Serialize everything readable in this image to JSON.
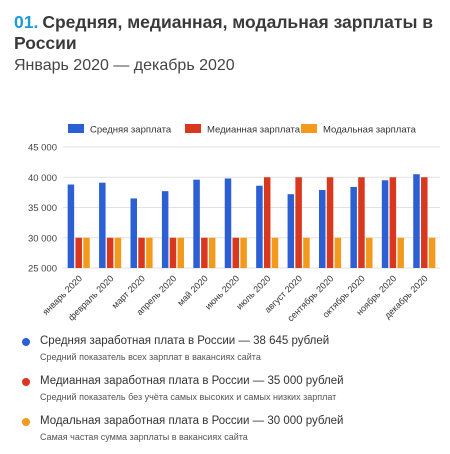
{
  "header": {
    "number": "01.",
    "title": "Средняя, медианная, модальная зарплаты в России",
    "subtitle": "Январь 2020 — декабрь 2020"
  },
  "chart_data": {
    "type": "bar",
    "categories": [
      "январь 2020",
      "февраль 2020",
      "март 2020",
      "апрель 2020",
      "май 2020",
      "июнь 2020",
      "июль 2020",
      "август 2020",
      "сентябрь 2020",
      "октябрь 2020",
      "ноябрь 2020",
      "декабрь 2020"
    ],
    "series": [
      {
        "name": "Средняя зарплата",
        "color": "#2b5fd3",
        "values": [
          38800,
          39100,
          36500,
          37700,
          39600,
          39800,
          38600,
          37200,
          37900,
          38400,
          39500,
          40500
        ]
      },
      {
        "name": "Медианная зарплата",
        "color": "#d9381e",
        "values": [
          30000,
          30000,
          30000,
          30000,
          30000,
          30000,
          40000,
          40000,
          40000,
          40000,
          40000,
          40000
        ]
      },
      {
        "name": "Модальная зарплата",
        "color": "#f39a1c",
        "values": [
          30000,
          30000,
          30000,
          30000,
          30000,
          30000,
          30000,
          30000,
          30000,
          30000,
          30000,
          30000
        ]
      }
    ],
    "ylim": [
      25000,
      45000
    ],
    "yticks": [
      25000,
      30000,
      35000,
      40000,
      45000
    ],
    "ytick_labels": [
      "25 000",
      "30 000",
      "35 000",
      "40 000",
      "45 000"
    ],
    "grid": true,
    "legend_position": "top"
  },
  "notes": [
    {
      "color": "#2b5fd3",
      "main": "Средняя заработная плата в России — 38 645 рублей",
      "sub": "Средний показатель всех зарплат в вакансиях сайта"
    },
    {
      "color": "#d9381e",
      "main": "Медианная заработная плата в России — 35 000 рублей",
      "sub": "Средний показатель без учёта самых высоких и самых низких зарплат"
    },
    {
      "color": "#f39a1c",
      "main": "Модальная заработная плата в России — 30 000 рублей",
      "sub": "Самая частая сумма зарплаты в вакансиях сайта"
    }
  ]
}
